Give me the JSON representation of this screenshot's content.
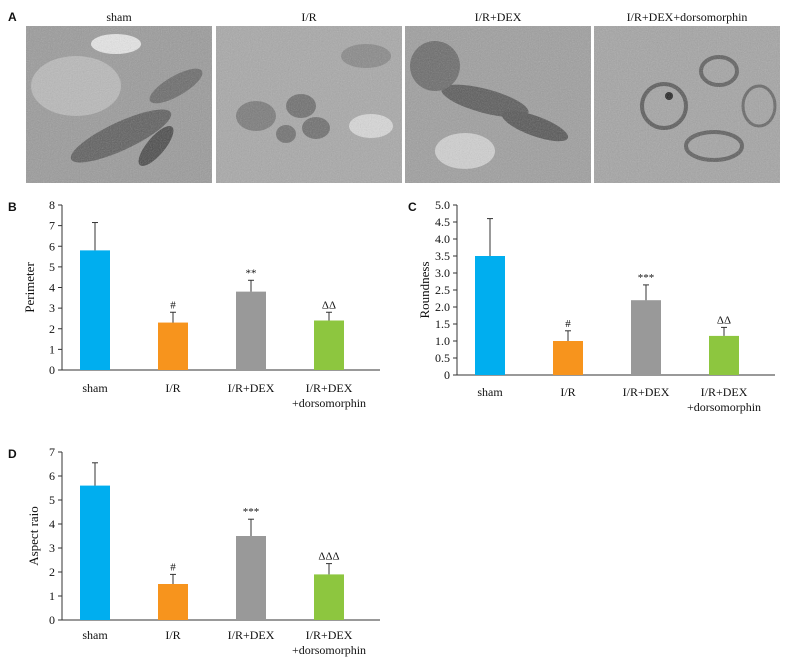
{
  "panel_letters": {
    "a": "A",
    "b": "B",
    "c": "C",
    "d": "D"
  },
  "micrograph_labels": [
    "sham",
    "I/R",
    "I/R+DEX",
    "I/R+DEX+dorsomorphin"
  ],
  "colors": {
    "sham": "#00aeef",
    "ir": "#f7941d",
    "dex": "#999999",
    "dorso": "#8dc63f",
    "axis": "#333333"
  },
  "chart_data": [
    {
      "type": "bar",
      "panel": "B",
      "categories": [
        "sham",
        "I/R",
        "I/R+DEX",
        "I/R+DEX\n+dorsomorphin"
      ],
      "values": [
        5.8,
        2.3,
        3.8,
        2.4
      ],
      "errors": [
        1.35,
        0.5,
        0.55,
        0.4
      ],
      "annotations": [
        "",
        "#",
        "**",
        "ΔΔ"
      ],
      "ylabel": "Perimeter",
      "ylim": [
        0,
        8
      ],
      "yticks": [
        "0",
        "1",
        "2",
        "3",
        "4",
        "5",
        "6",
        "7",
        "8"
      ]
    },
    {
      "type": "bar",
      "panel": "C",
      "categories": [
        "sham",
        "I/R",
        "I/R+DEX",
        "I/R+DEX\n+dorsomorphin"
      ],
      "values": [
        3.5,
        1.0,
        2.2,
        1.15
      ],
      "errors": [
        1.1,
        0.3,
        0.45,
        0.25
      ],
      "annotations": [
        "",
        "#",
        "***",
        "ΔΔ"
      ],
      "ylabel": "Roundness",
      "ylim": [
        0,
        5
      ],
      "yticks": [
        "0",
        "0.5",
        "1.0",
        "1.5",
        "2.0",
        "2.5",
        "3.0",
        "3.5",
        "4.0",
        "4.5",
        "5.0"
      ]
    },
    {
      "type": "bar",
      "panel": "D",
      "categories": [
        "sham",
        "I/R",
        "I/R+DEX",
        "I/R+DEX\n+dorsomorphin"
      ],
      "values": [
        5.6,
        1.5,
        3.5,
        1.9
      ],
      "errors": [
        0.95,
        0.4,
        0.7,
        0.45
      ],
      "annotations": [
        "",
        "#",
        "***",
        "ΔΔΔ"
      ],
      "ylabel": "Aspect raio",
      "ylim": [
        0,
        7
      ],
      "yticks": [
        "0",
        "1",
        "2",
        "3",
        "4",
        "5",
        "6",
        "7"
      ]
    }
  ]
}
